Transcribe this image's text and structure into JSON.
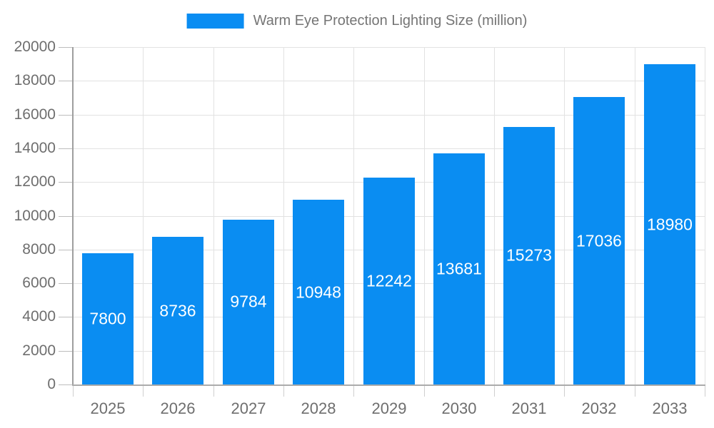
{
  "legend": {
    "label": "Warm Eye Protection Lighting Size (million)"
  },
  "chart_data": {
    "type": "bar",
    "title": "Warm Eye Protection Lighting Size (million)",
    "categories": [
      "2025",
      "2026",
      "2027",
      "2028",
      "2029",
      "2030",
      "2031",
      "2032",
      "2033"
    ],
    "values": [
      7800,
      8736,
      9784,
      10948,
      12242,
      13681,
      15273,
      17036,
      18980
    ],
    "xlabel": "",
    "ylabel": "",
    "ylim": [
      0,
      20000
    ],
    "y_ticks": [
      0,
      2000,
      4000,
      6000,
      8000,
      10000,
      12000,
      14000,
      16000,
      18000,
      20000
    ],
    "grid": true,
    "legend_position": "top",
    "value_labels": "inside-center-white",
    "colors": {
      "bar": "#0a8df2",
      "value_label": "#ffffff",
      "grid": "#e2e2e2",
      "axis": "#9e9e9e",
      "tick_text": "#6e6e6e",
      "legend_text": "#757575",
      "background": "#ffffff"
    }
  }
}
